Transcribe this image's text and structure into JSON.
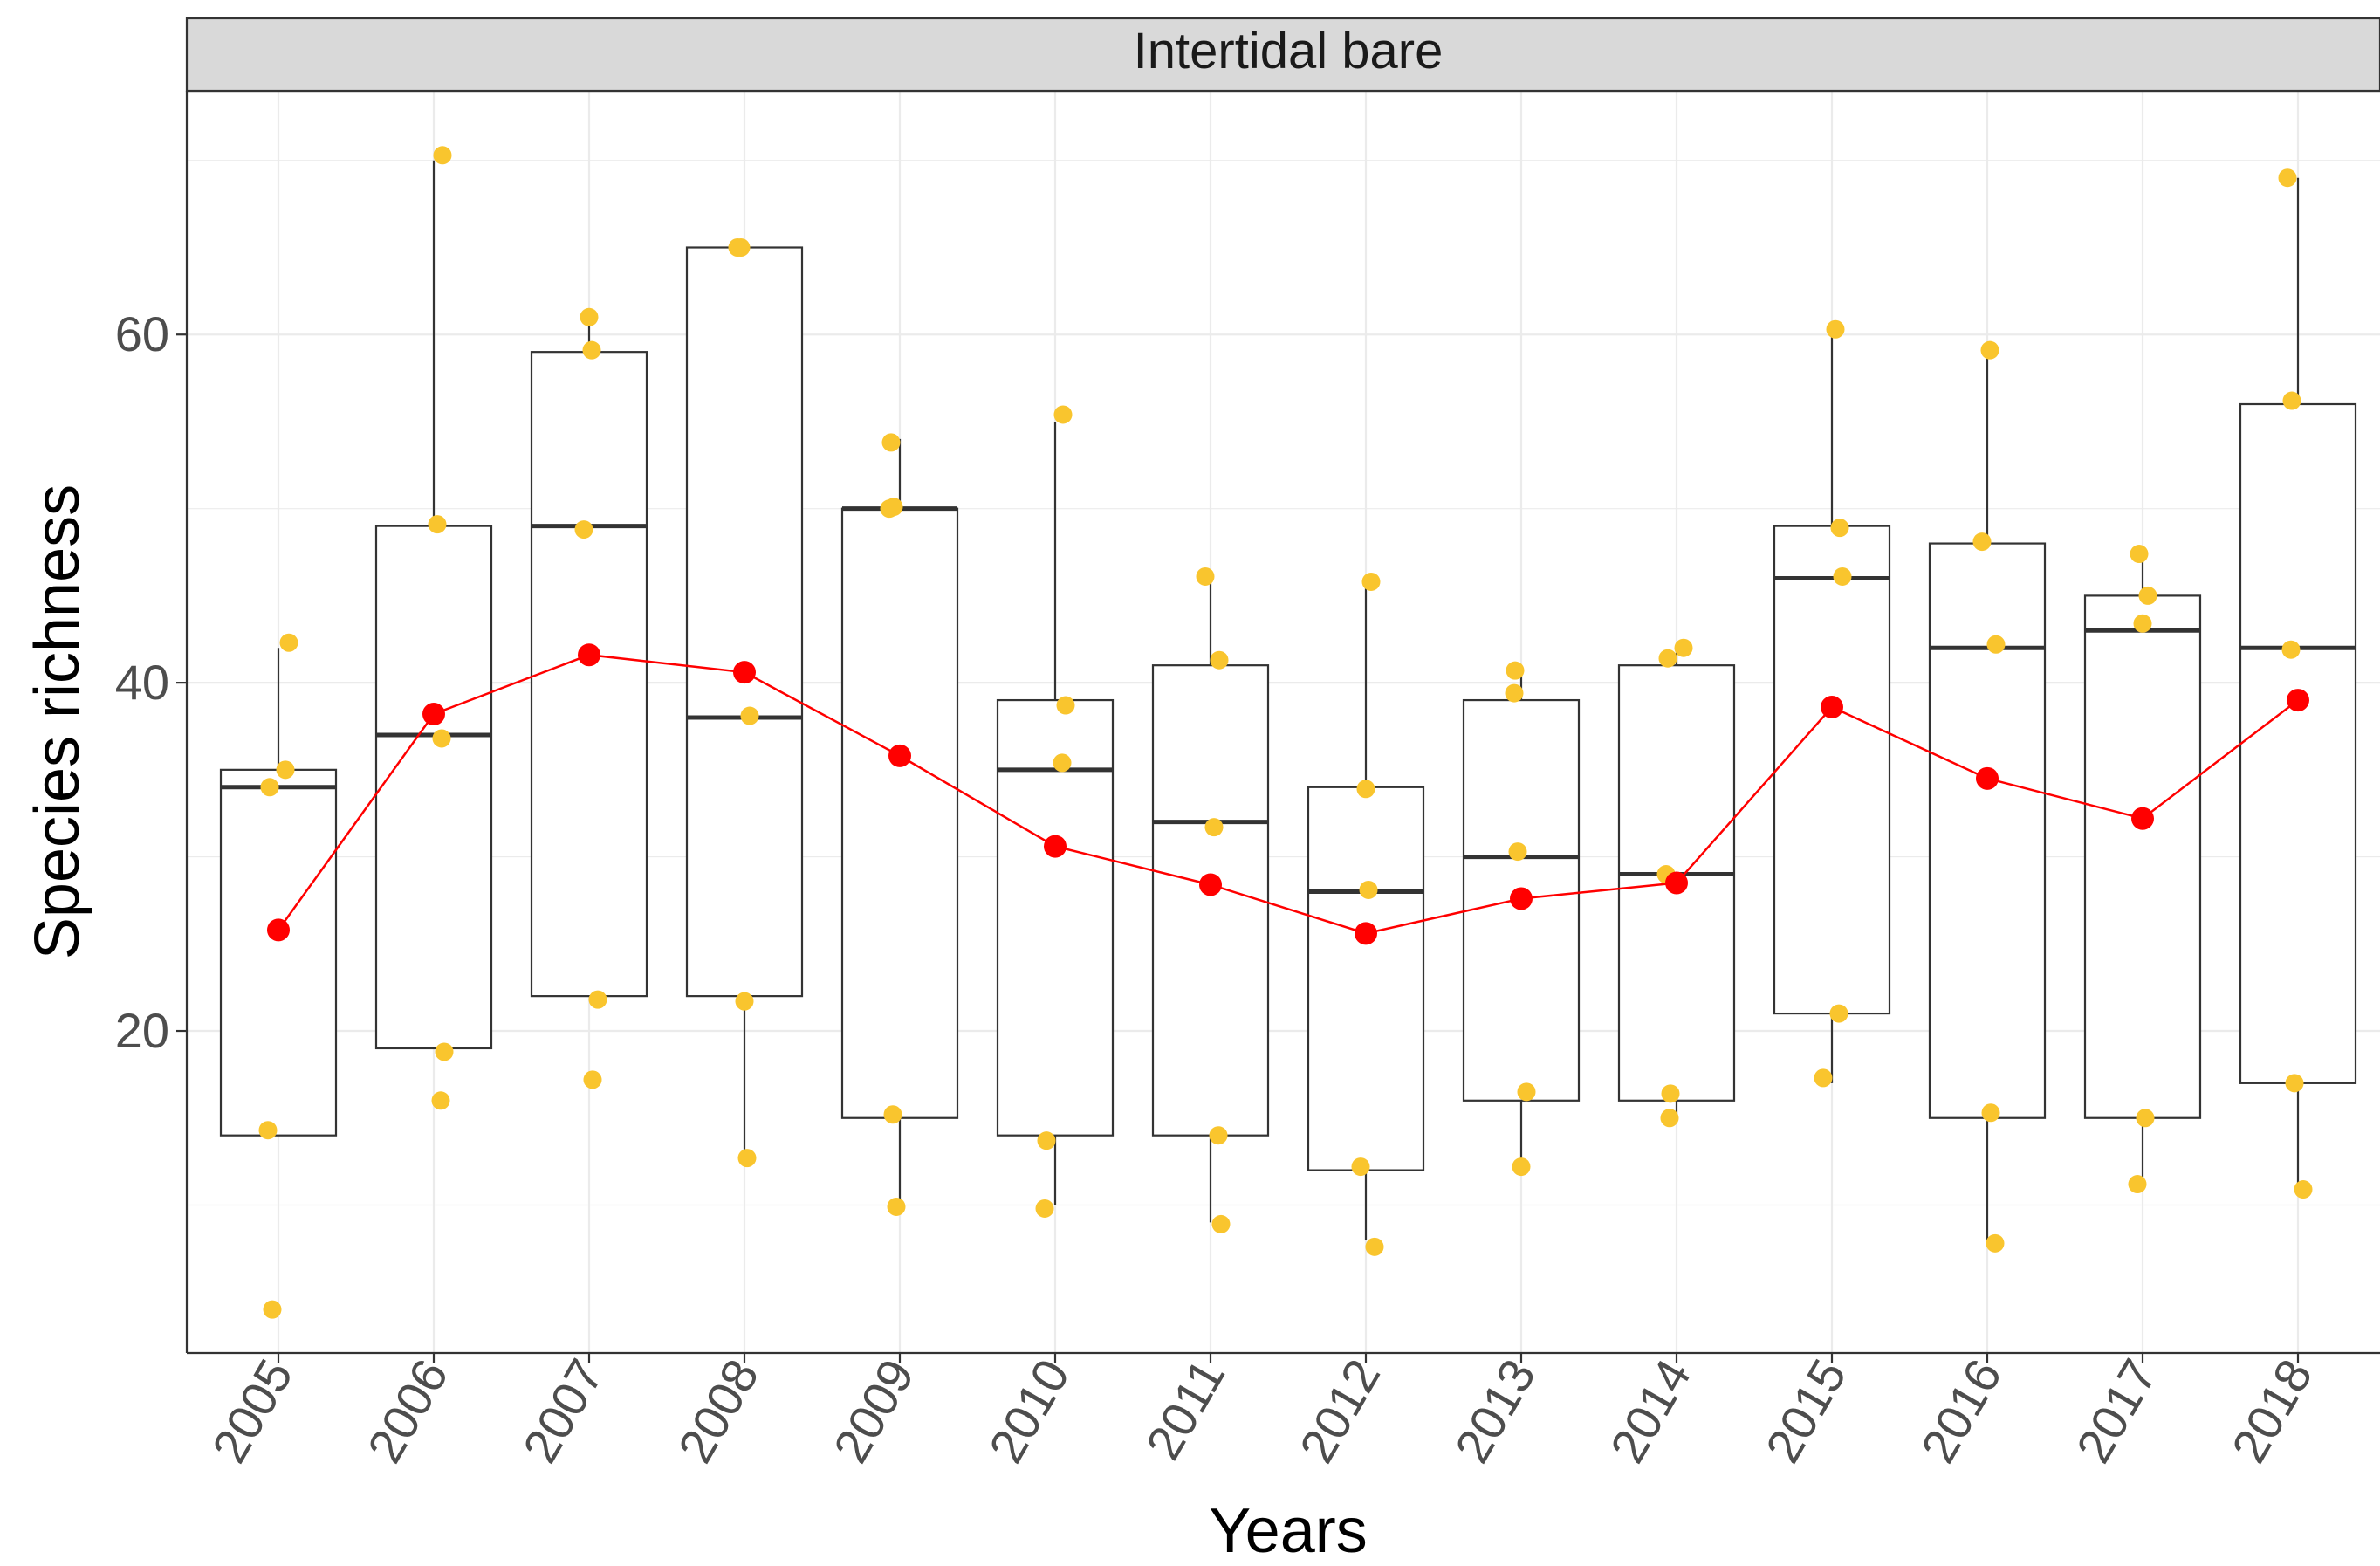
{
  "chart_data": {
    "type": "box",
    "facet_label": "Intertidal bare",
    "xlabel": "Years",
    "ylabel": "Species richness",
    "categories": [
      "2005",
      "2006",
      "2007",
      "2008",
      "2009",
      "2010",
      "2011",
      "2012",
      "2013",
      "2014",
      "2015",
      "2016",
      "2017",
      "2018"
    ],
    "y_ticks": [
      20,
      40,
      60
    ],
    "ylim": [
      1.5,
      74
    ],
    "grid": true,
    "boxes": [
      {
        "year": "2005",
        "lower": 14,
        "q1": 14,
        "median": 34,
        "q3": 35,
        "upper": 42
      },
      {
        "year": "2006",
        "lower": 19,
        "q1": 19,
        "median": 37,
        "q3": 49,
        "upper": 70
      },
      {
        "year": "2007",
        "lower": 22,
        "q1": 22,
        "median": 49,
        "q3": 59,
        "upper": 61
      },
      {
        "year": "2008",
        "lower": 13,
        "q1": 22,
        "median": 38,
        "q3": 65,
        "upper": 65
      },
      {
        "year": "2009",
        "lower": 10,
        "q1": 15,
        "median": 50,
        "q3": 50,
        "upper": 54
      },
      {
        "year": "2010",
        "lower": 10,
        "q1": 14,
        "median": 35,
        "q3": 39,
        "upper": 55
      },
      {
        "year": "2011",
        "lower": 9,
        "q1": 14,
        "median": 32,
        "q3": 41,
        "upper": 46
      },
      {
        "year": "2012",
        "lower": 8,
        "q1": 12,
        "median": 28,
        "q3": 34,
        "upper": 46
      },
      {
        "year": "2013",
        "lower": 12,
        "q1": 16,
        "median": 30,
        "q3": 39,
        "upper": 41
      },
      {
        "year": "2014",
        "lower": 15,
        "q1": 16,
        "median": 29,
        "q3": 41,
        "upper": 42
      },
      {
        "year": "2015",
        "lower": 17,
        "q1": 21,
        "median": 46,
        "q3": 49,
        "upper": 60
      },
      {
        "year": "2016",
        "lower": 8,
        "q1": 15,
        "median": 42,
        "q3": 48,
        "upper": 59
      },
      {
        "year": "2017",
        "lower": 11,
        "q1": 15,
        "median": 43,
        "q3": 45,
        "upper": 47
      },
      {
        "year": "2018",
        "lower": 11,
        "q1": 17,
        "median": 42,
        "q3": 56,
        "upper": 69
      }
    ],
    "points": [
      {
        "year": "2005",
        "values": [
          42.3,
          35,
          34,
          14.3,
          4
        ]
      },
      {
        "year": "2006",
        "values": [
          70.3,
          49.1,
          36.8,
          18.8,
          16
        ]
      },
      {
        "year": "2007",
        "values": [
          61,
          59.1,
          48.8,
          21.8,
          17.2
        ]
      },
      {
        "year": "2008",
        "values": [
          65,
          65,
          38.1,
          21.7,
          12.7
        ]
      },
      {
        "year": "2009",
        "values": [
          53.8,
          50,
          50.1,
          15.2,
          9.9
        ]
      },
      {
        "year": "2010",
        "values": [
          55.4,
          38.7,
          35.4,
          13.7,
          9.8
        ]
      },
      {
        "year": "2011",
        "values": [
          46.1,
          41.3,
          31.7,
          14,
          8.9
        ]
      },
      {
        "year": "2012",
        "values": [
          45.8,
          33.9,
          28.1,
          12.2,
          7.6
        ]
      },
      {
        "year": "2013",
        "values": [
          40.7,
          39.4,
          30.3,
          16.5,
          12.2
        ]
      },
      {
        "year": "2014",
        "values": [
          42,
          41.4,
          29,
          16.4,
          15
        ]
      },
      {
        "year": "2015",
        "values": [
          60.3,
          48.9,
          46.1,
          21,
          17.3
        ]
      },
      {
        "year": "2016",
        "values": [
          59.1,
          48.1,
          42.2,
          15.3,
          7.8
        ]
      },
      {
        "year": "2017",
        "values": [
          47.4,
          45,
          43.4,
          15,
          11.2
        ]
      },
      {
        "year": "2018",
        "values": [
          69,
          56.2,
          41.9,
          17,
          10.9
        ]
      }
    ],
    "mean_series": {
      "values": [
        25.8,
        38.2,
        41.6,
        40.6,
        35.8,
        30.6,
        28.4,
        25.6,
        27.6,
        28.5,
        38.6,
        34.5,
        32.2,
        39
      ]
    },
    "colors": {
      "points": "#F9C52E",
      "mean_line": "#FF0000",
      "box_outline": "#333333",
      "strip_background": "#D9D9D9",
      "grid": "#EBEBEB"
    }
  }
}
